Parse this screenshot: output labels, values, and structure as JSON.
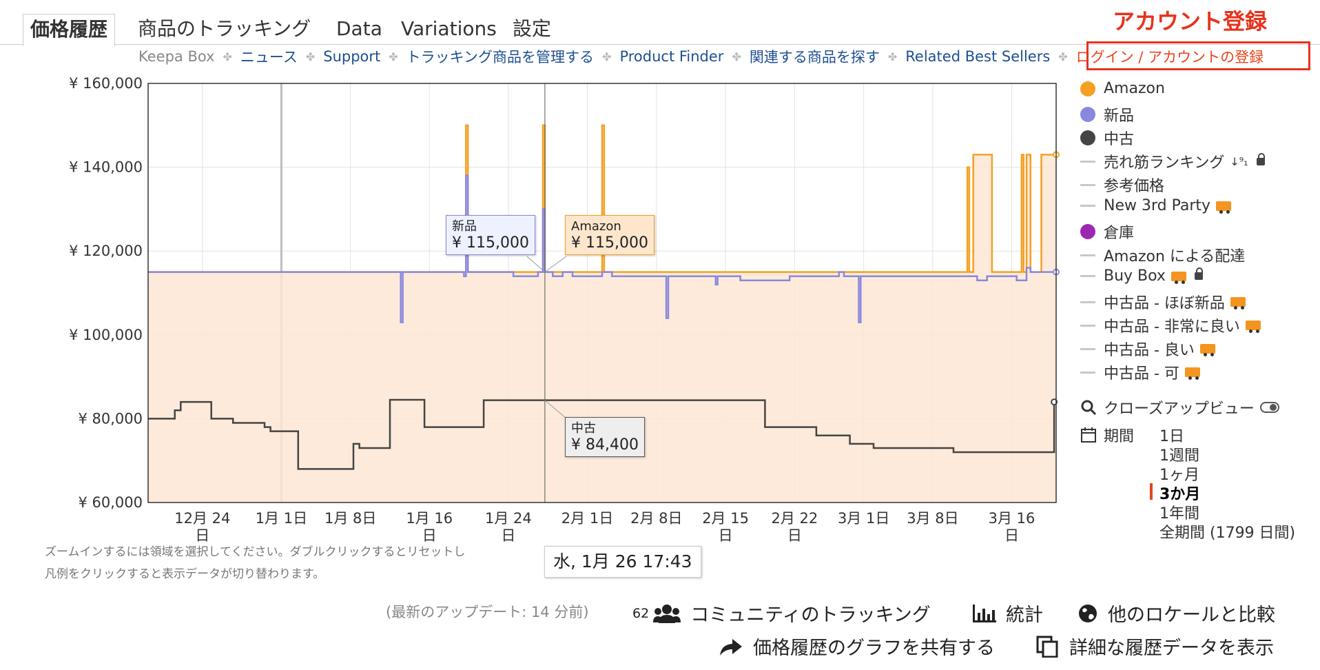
{
  "tabs": [
    {
      "label": "価格履歴"
    },
    {
      "label": "商品のトラッキング"
    },
    {
      "label": "Data"
    },
    {
      "label": "Variations"
    },
    {
      "label": "設定"
    }
  ],
  "account_label": "アカウント登録",
  "subnav": [
    "Keepa Box",
    "ニュース",
    "Support",
    "トラッキング商品を管理する",
    "Product Finder",
    "関連する商品を探す",
    "Related Best Sellers",
    "ログイン / アカウントの登録"
  ],
  "colors": {
    "amazon": "#f4a023",
    "new": "#8888dd",
    "used": "#444444",
    "warehouse": "#9c27b0",
    "accent": "#e8321c",
    "fill": "#fde6d3"
  },
  "legend": [
    {
      "label": "Amazon",
      "marker": "dot",
      "color": "#f4a023"
    },
    {
      "label": "新品",
      "marker": "dot",
      "color": "#8888dd"
    },
    {
      "label": "中古",
      "marker": "dot",
      "color": "#444444"
    },
    {
      "label": "売れ筋ランキング",
      "marker": "dash",
      "icons": [
        "sort-icon",
        "lock-icon"
      ]
    },
    {
      "label": "参考価格",
      "marker": "dash"
    },
    {
      "label": "New 3rd Party",
      "marker": "dash",
      "icons": [
        "truck-icon"
      ]
    },
    {
      "label": "倉庫",
      "marker": "dot",
      "color": "#9c27b0"
    },
    {
      "label": "Amazon による配達",
      "marker": "dash"
    },
    {
      "label": "Buy Box",
      "marker": "dash",
      "icons": [
        "truck-icon",
        "lock-icon"
      ]
    },
    {
      "label": "中古品 - ほぼ新品",
      "marker": "dash",
      "icons": [
        "truck-icon"
      ]
    },
    {
      "label": "中古品 - 非常に良い",
      "marker": "dash",
      "icons": [
        "truck-icon"
      ]
    },
    {
      "label": "中古品 - 良い",
      "marker": "dash",
      "icons": [
        "truck-icon"
      ]
    },
    {
      "label": "中古品 - 可",
      "marker": "dash",
      "icons": [
        "truck-icon"
      ]
    }
  ],
  "closeup_label": "クローズアップビュー",
  "period_label": "期間",
  "ranges": [
    {
      "label": "1日",
      "active": false
    },
    {
      "label": "1週間",
      "active": false
    },
    {
      "label": "1ヶ月",
      "active": false
    },
    {
      "label": "3か月",
      "active": true
    },
    {
      "label": "1年間",
      "active": false
    },
    {
      "label": "全期間 (1799 日間)",
      "active": false
    }
  ],
  "tooltips": {
    "new": {
      "name": "新品",
      "value": "¥ 115,000"
    },
    "amazon": {
      "name": "Amazon",
      "value": "¥ 115,000"
    },
    "used": {
      "name": "中古",
      "value": "¥ 84,400"
    },
    "date": "水, 1月 26 17:43"
  },
  "hints": {
    "line1": "ズームインするには領域を選択してください。ダブルクリックするとリセットし",
    "line2": "凡例をクリックすると表示データが切り替わります。"
  },
  "last_update": "(最新のアップデート: 14 分前)",
  "bottom": {
    "community_count": "62",
    "community": "コミュニティのトラッキング",
    "stats": "統計",
    "compare": "他のロケールと比較",
    "share": "価格履歴のグラフを共有する",
    "details": "詳細な履歴データを表示"
  },
  "chart_data": {
    "type": "line",
    "x_unit": "days from 2021-12-18",
    "xlim": [
      0,
      92
    ],
    "ylim": [
      60000,
      160000
    ],
    "y_ticks": [
      {
        "value": 60000,
        "label": "¥ 60,000"
      },
      {
        "value": 80000,
        "label": "¥ 80,000"
      },
      {
        "value": 100000,
        "label": "¥ 100,000"
      },
      {
        "value": 120000,
        "label": "¥ 120,000"
      },
      {
        "value": 140000,
        "label": "¥ 140,000"
      },
      {
        "value": 160000,
        "label": "¥ 160,000"
      }
    ],
    "x_ticks": [
      {
        "x": 5.5,
        "label": "12月 24",
        "sub": "日"
      },
      {
        "x": 13.5,
        "label": "1月 1日",
        "sub": ""
      },
      {
        "x": 20.5,
        "label": "1月 8日",
        "sub": ""
      },
      {
        "x": 28.5,
        "label": "1月 16",
        "sub": "日"
      },
      {
        "x": 36.5,
        "label": "1月 24",
        "sub": "日"
      },
      {
        "x": 44.5,
        "label": "2月 1日",
        "sub": ""
      },
      {
        "x": 51.5,
        "label": "2月 8日",
        "sub": ""
      },
      {
        "x": 58.5,
        "label": "2月 15",
        "sub": "日"
      },
      {
        "x": 65.5,
        "label": "2月 22",
        "sub": "日"
      },
      {
        "x": 72.5,
        "label": "3月 1日",
        "sub": ""
      },
      {
        "x": 79.5,
        "label": "3月 8日",
        "sub": ""
      },
      {
        "x": 87.5,
        "label": "3月 16",
        "sub": "日"
      }
    ],
    "crosshair_x": 40.2,
    "series": [
      {
        "name": "Amazon",
        "color": "#f4a023",
        "fill": true,
        "points": [
          [
            0,
            115000
          ],
          [
            32.2,
            115000
          ],
          [
            32.2,
            150000
          ],
          [
            32.4,
            150000
          ],
          [
            32.4,
            115000
          ],
          [
            40.0,
            115000
          ],
          [
            40.0,
            150000
          ],
          [
            40.2,
            150000
          ],
          [
            40.2,
            115000
          ],
          [
            46.0,
            115000
          ],
          [
            46.0,
            150000
          ],
          [
            46.2,
            150000
          ],
          [
            46.2,
            115000
          ],
          [
            83.0,
            115000
          ],
          [
            83.0,
            140000
          ],
          [
            83.2,
            140000
          ],
          [
            83.2,
            115000
          ],
          [
            83.6,
            115000
          ],
          [
            83.6,
            143000
          ],
          [
            85.5,
            143000
          ],
          [
            85.5,
            115000
          ],
          [
            88.5,
            115000
          ],
          [
            88.5,
            143000
          ],
          [
            88.7,
            143000
          ],
          [
            88.7,
            115000
          ],
          [
            89.0,
            115000
          ],
          [
            89.0,
            143000
          ],
          [
            89.4,
            143000
          ],
          [
            89.4,
            115000
          ],
          [
            90.5,
            115000
          ],
          [
            90.5,
            143000
          ],
          [
            92,
            143000
          ]
        ]
      },
      {
        "name": "新品",
        "color": "#8888dd",
        "fill": false,
        "points": [
          [
            0,
            115000
          ],
          [
            25.6,
            115000
          ],
          [
            25.6,
            103000
          ],
          [
            25.8,
            103000
          ],
          [
            25.8,
            115000
          ],
          [
            32.0,
            115000
          ],
          [
            32.0,
            114000
          ],
          [
            32.2,
            114000
          ],
          [
            32.2,
            138000
          ],
          [
            32.4,
            138000
          ],
          [
            32.4,
            115000
          ],
          [
            37.0,
            115000
          ],
          [
            37.0,
            114000
          ],
          [
            39.5,
            114000
          ],
          [
            39.5,
            115000
          ],
          [
            40.0,
            115000
          ],
          [
            40.0,
            130000
          ],
          [
            40.2,
            130000
          ],
          [
            40.2,
            115000
          ],
          [
            41.0,
            115000
          ],
          [
            41.0,
            114000
          ],
          [
            42.0,
            114000
          ],
          [
            42.0,
            115000
          ],
          [
            43.0,
            115000
          ],
          [
            43.0,
            114000
          ],
          [
            46.0,
            114000
          ],
          [
            46.0,
            115000
          ],
          [
            47.0,
            115000
          ],
          [
            47.0,
            114000
          ],
          [
            52.5,
            114000
          ],
          [
            52.5,
            104000
          ],
          [
            52.7,
            104000
          ],
          [
            52.7,
            114000
          ],
          [
            57.5,
            114000
          ],
          [
            57.5,
            112000
          ],
          [
            57.7,
            112000
          ],
          [
            57.7,
            114000
          ],
          [
            60.0,
            114000
          ],
          [
            60.0,
            113000
          ],
          [
            65.0,
            113000
          ],
          [
            65.0,
            114000
          ],
          [
            70.0,
            114000
          ],
          [
            70.0,
            115000
          ],
          [
            70.5,
            115000
          ],
          [
            70.5,
            114000
          ],
          [
            72.0,
            114000
          ],
          [
            72.0,
            103000
          ],
          [
            72.2,
            103000
          ],
          [
            72.2,
            114000
          ],
          [
            84.0,
            114000
          ],
          [
            84.0,
            113000
          ],
          [
            85.0,
            113000
          ],
          [
            85.0,
            114000
          ],
          [
            88.0,
            114000
          ],
          [
            88.0,
            113000
          ],
          [
            89.0,
            113000
          ],
          [
            89.0,
            116000
          ],
          [
            89.4,
            116000
          ],
          [
            89.4,
            115000
          ],
          [
            92,
            115000
          ]
        ]
      },
      {
        "name": "中古",
        "color": "#444444",
        "fill": false,
        "points": [
          [
            0,
            80000
          ],
          [
            2.7,
            80000
          ],
          [
            2.7,
            82000
          ],
          [
            3.3,
            82000
          ],
          [
            3.3,
            84000
          ],
          [
            6.4,
            84000
          ],
          [
            6.4,
            80000
          ],
          [
            8.6,
            80000
          ],
          [
            8.6,
            79000
          ],
          [
            11.8,
            79000
          ],
          [
            11.8,
            78000
          ],
          [
            12.4,
            78000
          ],
          [
            12.4,
            77000
          ],
          [
            15.2,
            77000
          ],
          [
            15.2,
            68000
          ],
          [
            20.8,
            68000
          ],
          [
            20.8,
            74000
          ],
          [
            21.4,
            74000
          ],
          [
            21.4,
            73000
          ],
          [
            24.5,
            73000
          ],
          [
            24.5,
            84500
          ],
          [
            28.0,
            84500
          ],
          [
            28.0,
            78000
          ],
          [
            34.0,
            78000
          ],
          [
            34.0,
            84400
          ],
          [
            62.5,
            84400
          ],
          [
            62.5,
            78000
          ],
          [
            67.7,
            78000
          ],
          [
            67.7,
            76000
          ],
          [
            71.1,
            76000
          ],
          [
            71.1,
            74000
          ],
          [
            73.5,
            74000
          ],
          [
            73.5,
            73000
          ],
          [
            81.6,
            73000
          ],
          [
            81.6,
            72000
          ],
          [
            91.8,
            72000
          ],
          [
            91.8,
            84000
          ]
        ]
      }
    ]
  }
}
